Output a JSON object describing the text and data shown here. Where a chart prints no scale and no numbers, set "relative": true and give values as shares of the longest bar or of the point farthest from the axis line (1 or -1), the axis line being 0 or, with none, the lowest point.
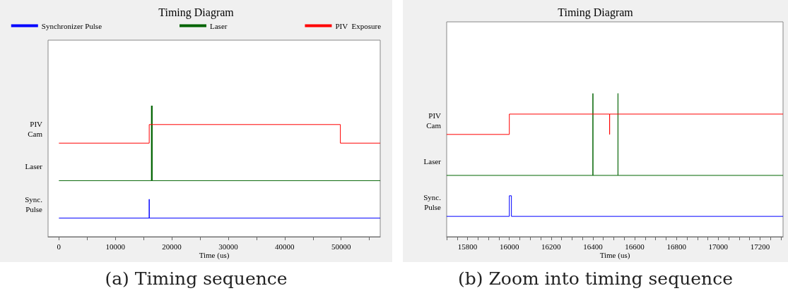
{
  "chart_data": [
    {
      "type": "line",
      "title": "Timing Diagram",
      "xlabel": "Time (us)",
      "relative": true,
      "grid": false,
      "legend": "top",
      "line_style": "solid",
      "xlim": [
        -1920,
        56920
      ],
      "xticks": [
        0,
        {
          "value": 5000,
          "label": null
        },
        10000,
        {
          "value": 15000,
          "label": null
        },
        20000,
        {
          "value": 25000,
          "label": null
        },
        30000,
        {
          "value": 35000,
          "label": null
        },
        40000,
        {
          "value": 45000,
          "label": null
        },
        50000,
        {
          "value": 55000,
          "label": null
        }
      ],
      "series": [
        {
          "name": "Synchronizer Pulse",
          "color": "#0000ff",
          "x": [
            0,
            16000,
            16000,
            16010,
            16010,
            56920
          ],
          "values": [
            0.142,
            0.142,
            0.286,
            0.286,
            0.142,
            0.142
          ]
        },
        {
          "name": "Laser",
          "color": "#006400",
          "x": [
            0,
            16400,
            16400,
            16400,
            16520,
            16520,
            16520,
            56920
          ],
          "values": [
            0.428,
            0.428,
            1,
            0.428,
            0.428,
            1,
            0.428,
            0.428
          ]
        },
        {
          "name": "PIV  Exposure",
          "color": "#ff0000",
          "x": [
            0,
            16000,
            16000,
            49860,
            49860,
            56920
          ],
          "values": [
            0.714,
            0.714,
            0.856,
            0.856,
            0.714,
            0.714
          ]
        }
      ],
      "annotations": [
        "PIV Cam",
        "Laser",
        "Sync. Pulse",
        "(a) Timing sequence"
      ]
    },
    {
      "type": "line",
      "title": "Timing Diagram",
      "xlabel": "Time (us)",
      "relative": true,
      "grid": false,
      "legend": false,
      "line_style": "solid",
      "xlim": [
        15700,
        17310
      ],
      "xticks": [
        {
          "value": 15700,
          "label": null
        },
        {
          "value": 15750,
          "label": null
        },
        15800,
        {
          "value": 15850,
          "label": null
        },
        {
          "value": 15900,
          "label": null
        },
        {
          "value": 15950,
          "label": null
        },
        16000,
        {
          "value": 16050,
          "label": null
        },
        {
          "value": 16100,
          "label": null
        },
        {
          "value": 16150,
          "label": null
        },
        16200,
        {
          "value": 16250,
          "label": null
        },
        {
          "value": 16300,
          "label": null
        },
        {
          "value": 16350,
          "label": null
        },
        16400,
        {
          "value": 16450,
          "label": null
        },
        {
          "value": 16500,
          "label": null
        },
        {
          "value": 16550,
          "label": null
        },
        16600,
        {
          "value": 16650,
          "label": null
        },
        {
          "value": 16700,
          "label": null
        },
        {
          "value": 16750,
          "label": null
        },
        16800,
        {
          "value": 16850,
          "label": null
        },
        {
          "value": 16900,
          "label": null
        },
        {
          "value": 16950,
          "label": null
        },
        17000,
        {
          "value": 17050,
          "label": null
        },
        {
          "value": 17100,
          "label": null
        },
        {
          "value": 17150,
          "label": null
        },
        17200,
        {
          "value": 17250,
          "label": null
        },
        {
          "value": 17300,
          "label": null
        }
      ],
      "series": [
        {
          "color": "#0000ff",
          "x": [
            15700,
            16000,
            16000,
            16010,
            16010,
            17310
          ],
          "values": [
            0.142,
            0.142,
            0.286,
            0.286,
            0.142,
            0.142
          ]
        },
        {
          "color": "#006400",
          "x": [
            15700,
            16400,
            16400,
            16400,
            16520,
            16520,
            16520,
            17310
          ],
          "values": [
            0.428,
            0.428,
            1,
            0.428,
            0.428,
            1,
            0.428,
            0.428
          ]
        },
        {
          "color": "#ff0000",
          "x": [
            15700,
            16000,
            16000,
            16480,
            16480,
            16480,
            17310
          ],
          "values": [
            0.714,
            0.714,
            0.856,
            0.856,
            0.714,
            0.856,
            0.856
          ]
        }
      ],
      "annotations": [
        "PIV Cam",
        "Laser",
        "Sync. Pulse",
        "(b) Zoom into timing sequence"
      ]
    }
  ]
}
